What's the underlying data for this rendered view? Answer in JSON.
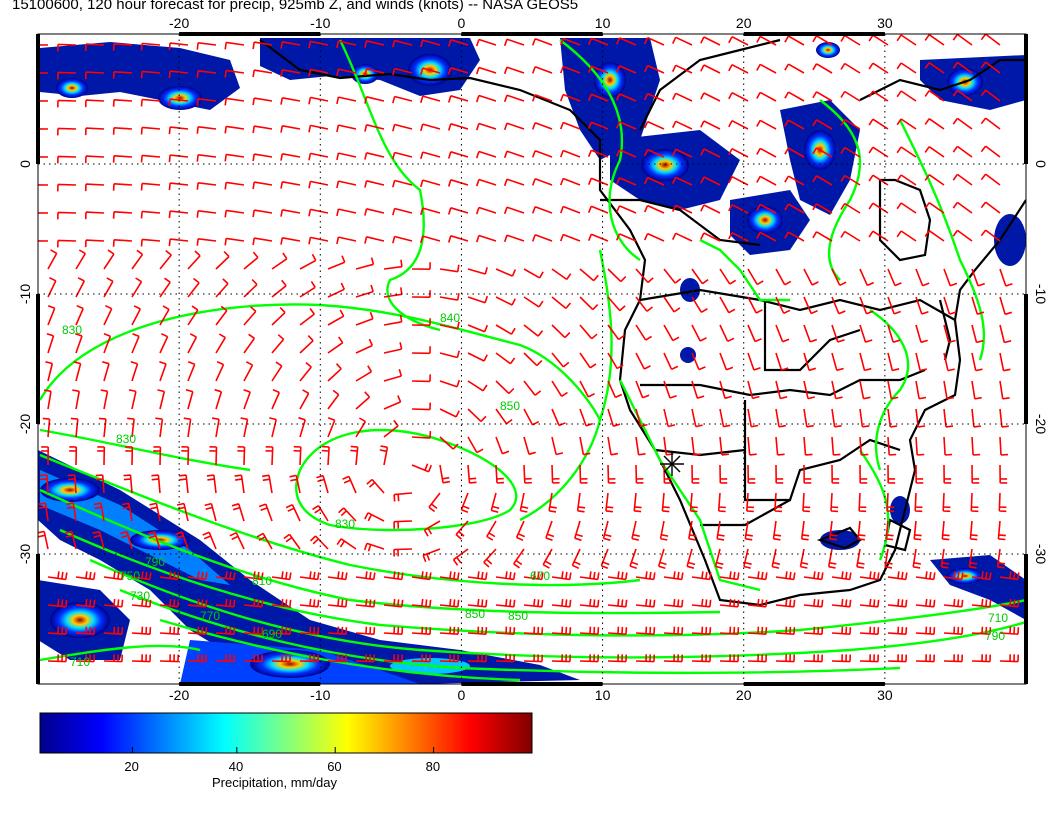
{
  "title": "15100600, 120 hour forecast for precip, 925mb Z, and winds (knots) -- NASA GEOS5",
  "map": {
    "lon_range": [
      -30,
      40
    ],
    "lat_range": [
      -40,
      10
    ],
    "lon_ticks": [
      "-20",
      "-10",
      "0",
      "10",
      "20",
      "30"
    ],
    "lat_ticks": [
      "0",
      "-10",
      "-20",
      "-30"
    ],
    "contour_labels": [
      "830",
      "830",
      "840",
      "850",
      "830",
      "810",
      "790",
      "770",
      "750",
      "730",
      "710",
      "690",
      "670",
      "850",
      "790",
      "710",
      "850"
    ],
    "colors": {
      "precip_low": "#00008b",
      "precip_mid": "#00ffff",
      "precip_high": "#8b0000",
      "contours": "#00ff00",
      "wind_barbs": "#ff0000",
      "coastlines": "#000000"
    }
  },
  "colorbar": {
    "ticks": [
      "20",
      "40",
      "60",
      "80"
    ],
    "label": "Precipitation, mm/day",
    "stops": [
      "#00008b",
      "#0000ff",
      "#0080ff",
      "#00ffff",
      "#80ff80",
      "#ffff00",
      "#ff8000",
      "#ff0000",
      "#800000"
    ]
  }
}
